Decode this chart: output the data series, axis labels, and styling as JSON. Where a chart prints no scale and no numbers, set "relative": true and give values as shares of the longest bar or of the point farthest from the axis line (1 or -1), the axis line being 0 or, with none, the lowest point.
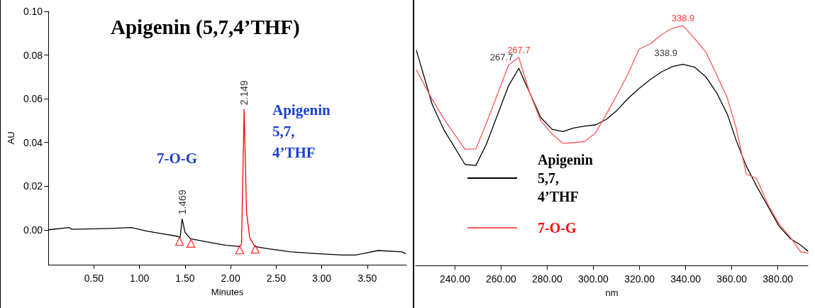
{
  "chart_data": [
    {
      "type": "line",
      "title": "Apigenin (5,7,4’THF)",
      "xlabel": "Minutes",
      "ylabel": "AU",
      "xlim": [
        0,
        3.93
      ],
      "ylim": [
        -0.016,
        0.1
      ],
      "xticks": [
        {
          "value": 0.5,
          "label": "0.50"
        },
        {
          "value": 1,
          "label": "1.00"
        },
        {
          "value": 1.5,
          "label": "1.50"
        },
        {
          "value": 2,
          "label": "2.00"
        },
        {
          "value": 2.5,
          "label": "2.50"
        },
        {
          "value": 3,
          "label": "3.00"
        },
        {
          "value": 3.5,
          "label": "3.50"
        }
      ],
      "yticks": [
        {
          "value": 0,
          "label": "0.00"
        },
        {
          "value": 0.02,
          "label": "0.02"
        },
        {
          "value": 0.04,
          "label": "0.04"
        },
        {
          "value": 0.06,
          "label": "0.06"
        },
        {
          "value": 0.08,
          "label": "0.08"
        },
        {
          "value": 0.1,
          "label": "0.10"
        }
      ],
      "grid": false,
      "legend": false,
      "marker": "none",
      "series": [
        {
          "color": "#000000",
          "x": [
            0.006,
            0.23,
            0.26,
            0.68,
            0.91,
            1.08,
            1.25,
            1.42,
            1.446,
            1.469,
            1.5,
            1.56,
            1.76,
            1.95,
            2.1,
            2.12,
            2.149,
            2.175,
            2.21,
            2.27,
            2.38,
            2.66,
            2.94,
            3.23,
            3.37,
            3.62,
            3.88,
            3.92
          ],
          "values": [
            0.0,
            0.001,
            0.0002,
            0.0006,
            0.001,
            -0.0006,
            -0.0018,
            -0.003,
            -0.0036,
            0.005,
            -0.0012,
            -0.0041,
            -0.0057,
            -0.0071,
            -0.0077,
            null,
            null,
            null,
            null,
            -0.0077,
            -0.0085,
            -0.0101,
            -0.0109,
            -0.0116,
            -0.0116,
            -0.0095,
            -0.0101,
            -0.0109
          ]
        },
        {
          "color": "#ff0000",
          "x": [
            2.1,
            2.12,
            2.149,
            2.175,
            2.21,
            2.26
          ],
          "values": [
            -0.0077,
            -0.0065,
            0.0551,
            0.0083,
            -0.0036,
            -0.0073
          ]
        },
        {
          "type": "scatter",
          "marker": "triangle",
          "color": "#ff0000",
          "x": [
            1.44,
            1.565,
            2.1,
            2.27
          ],
          "values": [
            -0.0053,
            -0.0062,
            -0.0092,
            -0.0089
          ]
        }
      ],
      "annotations": [
        {
          "text": "2.149",
          "x": 2.149,
          "y": 0.0551
        },
        {
          "text": "1.469",
          "x": 1.469,
          "y": 0.005
        },
        "7-O-G",
        "Apigenin 5,7,4’THF"
      ]
    },
    {
      "type": "line",
      "relative": true,
      "xlabel": "nm",
      "xlim": [
        223,
        393
      ],
      "xticks": [
        {
          "value": 240,
          "label": "240.00"
        },
        {
          "value": 260,
          "label": "260.00"
        },
        {
          "value": 280,
          "label": "280.00"
        },
        {
          "value": 300,
          "label": "300.00"
        },
        {
          "value": 320,
          "label": "320.00"
        },
        {
          "value": 340,
          "label": "340.00"
        },
        {
          "value": 360,
          "label": "360.00"
        },
        {
          "value": 380,
          "label": "380.00"
        }
      ],
      "grid": false,
      "legend": "bottom left",
      "marker": "none",
      "x": [
        223.3,
        230.2,
        235.1,
        244.4,
        249.1,
        253.7,
        263.3,
        267.7,
        272.3,
        277.2,
        282.1,
        286.8,
        291.5,
        296.3,
        301.0,
        305.6,
        310.3,
        315.1,
        319.8,
        324.8,
        329.7,
        334.4,
        338.9,
        343.9,
        348.8,
        353.5,
        358.1,
        361.9,
        366.3,
        370.7,
        375.6,
        380.5,
        385.5,
        389.8,
        393.0
      ],
      "series": [
        {
          "name": "Apigenin 5,7,4’THF",
          "color": "#000000",
          "values": [
            0.897,
            0.671,
            0.568,
            0.421,
            0.417,
            0.507,
            0.75,
            0.822,
            0.723,
            0.617,
            0.568,
            0.558,
            0.573,
            0.581,
            0.586,
            0.609,
            0.647,
            0.697,
            0.738,
            0.776,
            0.808,
            0.83,
            0.839,
            0.827,
            0.786,
            0.719,
            0.63,
            0.522,
            0.414,
            0.332,
            0.247,
            0.164,
            0.111,
            0.085,
            0.06
          ]
        },
        {
          "name": "7-O-G",
          "color": "#ff5555",
          "values": [
            0.815,
            0.692,
            0.613,
            0.484,
            0.486,
            0.594,
            0.836,
            0.868,
            0.723,
            0.604,
            0.548,
            0.509,
            0.512,
            0.517,
            0.553,
            0.63,
            0.712,
            0.8,
            0.902,
            0.925,
            0.964,
            0.99,
            1.0,
            0.946,
            0.89,
            0.794,
            0.697,
            0.573,
            0.381,
            0.363,
            0.255,
            0.173,
            0.116,
            0.057,
            0.051
          ]
        }
      ],
      "annotations": [
        {
          "text": "267.7",
          "x": 267.7,
          "y": 0.822
        },
        {
          "text": "267.7",
          "x": 267.7,
          "y": 0.868
        },
        {
          "text": "338.9",
          "x": 338.9,
          "y": 0.839
        },
        {
          "text": "338.9",
          "x": 338.9,
          "y": 1.0
        }
      ]
    }
  ]
}
